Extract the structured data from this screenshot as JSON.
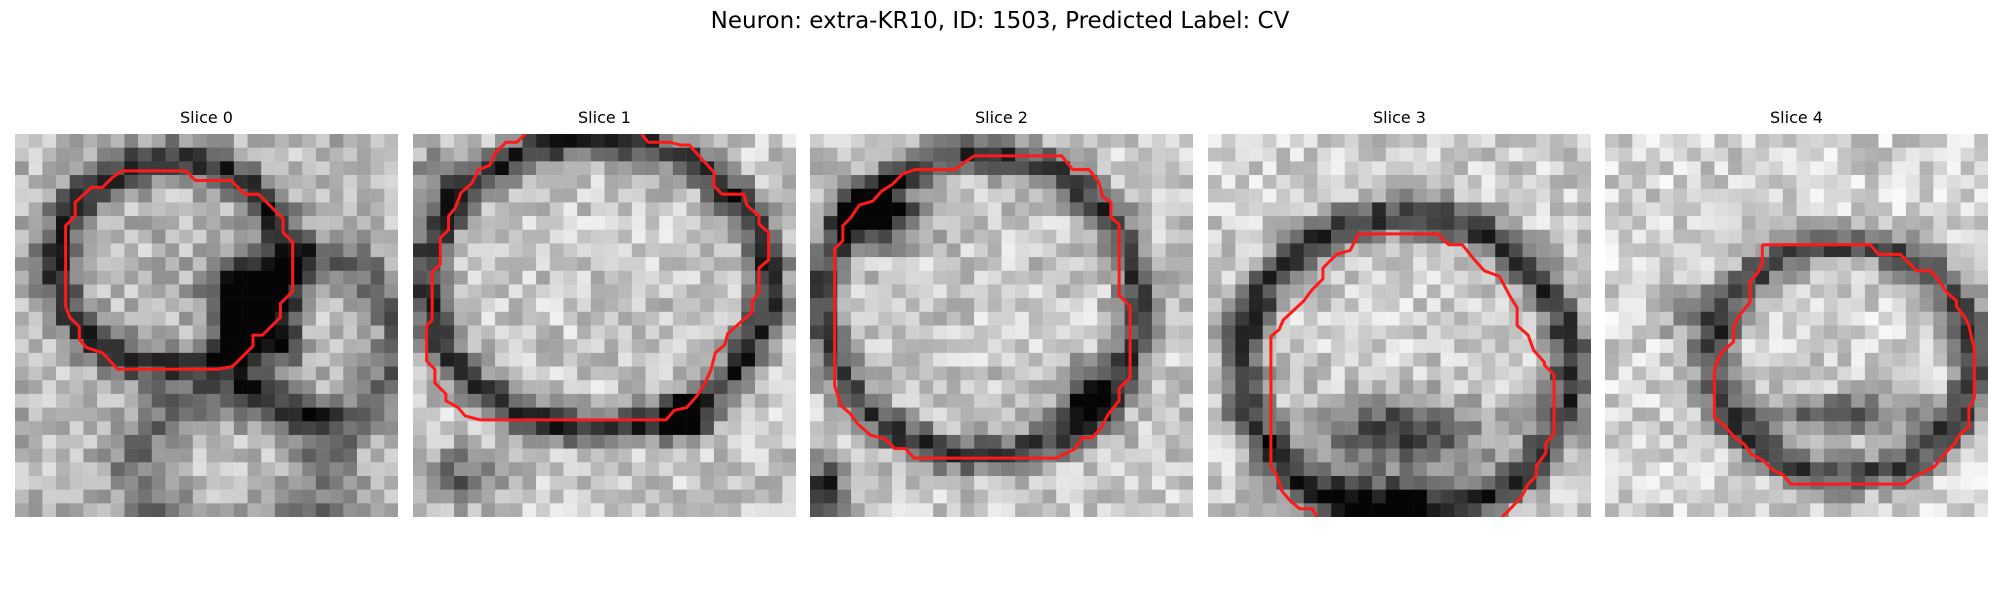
{
  "figure": {
    "title": "Neuron: extra-KR10, ID: 1503, Predicted Label: CV",
    "contour_color": "#ff1a1a",
    "colormap": "grayscale",
    "grid_size": 28
  },
  "slices": [
    {
      "title": "Slice 0"
    },
    {
      "title": "Slice 1"
    },
    {
      "title": "Slice 2"
    },
    {
      "title": "Slice 3"
    },
    {
      "title": "Slice 4"
    }
  ]
}
